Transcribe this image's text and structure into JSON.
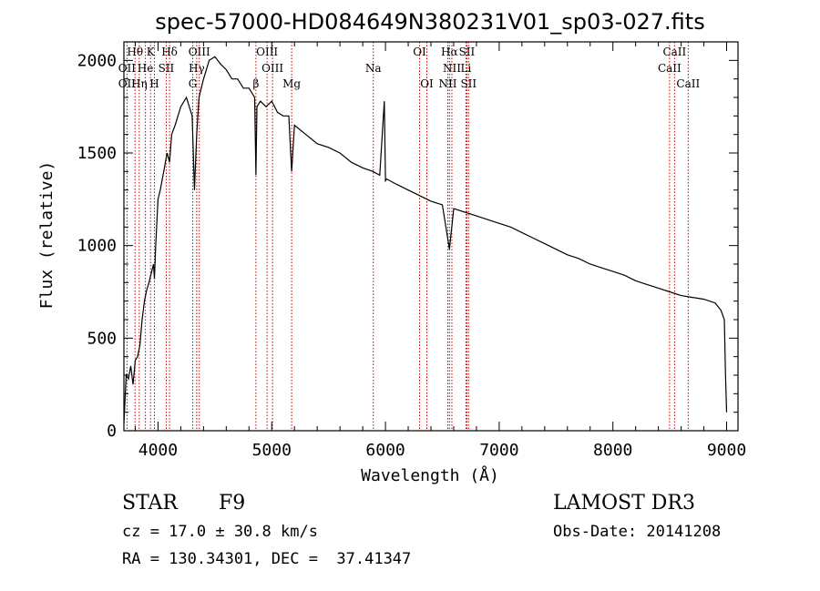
{
  "chart_data": {
    "type": "line",
    "title": "spec-57000-HD084649N380231V01_sp03-027.fits",
    "xlabel": "Wavelength (Å)",
    "ylabel": "Flux (relative)",
    "xlim": [
      3700,
      9100
    ],
    "ylim": [
      0,
      2100
    ],
    "xticks": [
      4000,
      5000,
      6000,
      7000,
      8000,
      9000
    ],
    "yticks": [
      0,
      500,
      1000,
      1500,
      2000
    ],
    "grid": false,
    "series": [
      {
        "name": "flux",
        "x": [
          3700,
          3720,
          3740,
          3760,
          3780,
          3800,
          3820,
          3840,
          3860,
          3880,
          3900,
          3920,
          3940,
          3960,
          3968,
          3980,
          4000,
          4020,
          4050,
          4080,
          4101,
          4120,
          4150,
          4200,
          4250,
          4300,
          4320,
          4340,
          4360,
          4380,
          4400,
          4450,
          4500,
          4550,
          4600,
          4650,
          4700,
          4750,
          4800,
          4850,
          4861,
          4870,
          4900,
          4950,
          5000,
          5050,
          5100,
          5150,
          5175,
          5200,
          5300,
          5400,
          5500,
          5600,
          5700,
          5800,
          5890,
          5950,
          5990,
          6000,
          6010,
          6100,
          6200,
          6300,
          6400,
          6500,
          6563,
          6600,
          6700,
          6800,
          6900,
          7000,
          7100,
          7200,
          7300,
          7400,
          7500,
          7600,
          7700,
          7800,
          7900,
          8000,
          8100,
          8200,
          8300,
          8400,
          8500,
          8600,
          8700,
          8800,
          8900,
          8950,
          8980,
          8990,
          9000
        ],
        "values": [
          40,
          300,
          280,
          350,
          250,
          380,
          400,
          460,
          600,
          700,
          760,
          800,
          850,
          900,
          820,
          1000,
          1250,
          1300,
          1400,
          1500,
          1450,
          1600,
          1650,
          1750,
          1800,
          1700,
          1300,
          1600,
          1800,
          1850,
          1900,
          2000,
          2020,
          1980,
          1950,
          1900,
          1900,
          1850,
          1850,
          1800,
          1380,
          1750,
          1780,
          1750,
          1780,
          1720,
          1700,
          1700,
          1400,
          1650,
          1600,
          1550,
          1530,
          1500,
          1450,
          1420,
          1400,
          1380,
          1780,
          1350,
          1360,
          1330,
          1300,
          1270,
          1240,
          1220,
          980,
          1200,
          1180,
          1160,
          1140,
          1120,
          1100,
          1070,
          1040,
          1010,
          980,
          950,
          930,
          900,
          880,
          860,
          840,
          810,
          790,
          770,
          750,
          730,
          720,
          710,
          690,
          650,
          600,
          300,
          100
        ]
      }
    ],
    "annotations": [
      {
        "label": "Hδ",
        "x": 4101,
        "row": 0
      },
      {
        "label": "Hθ",
        "x": 3798,
        "row": 0
      },
      {
        "label": "K",
        "x": 3934,
        "row": 0
      },
      {
        "label": "OIII",
        "x": 4363,
        "row": 0
      },
      {
        "label": "OIII",
        "x": 4959,
        "row": 0
      },
      {
        "label": "OI",
        "x": 6300,
        "row": 0
      },
      {
        "label": "Hα",
        "x": 6563,
        "row": 0
      },
      {
        "label": "SII",
        "x": 6716,
        "row": 0
      },
      {
        "label": "CaII",
        "x": 8542,
        "row": 0
      },
      {
        "label": "OII",
        "x": 3727,
        "row": 1
      },
      {
        "label": "He",
        "x": 3889,
        "row": 1
      },
      {
        "label": "SII",
        "x": 4072,
        "row": 1
      },
      {
        "label": "Hγ",
        "x": 4340,
        "row": 1
      },
      {
        "label": "OIII",
        "x": 5007,
        "row": 1
      },
      {
        "label": "Na",
        "x": 5893,
        "row": 1
      },
      {
        "label": "NII",
        "x": 6584,
        "row": 1
      },
      {
        "label": "Li",
        "x": 6708,
        "row": 1
      },
      {
        "label": "CaII",
        "x": 8498,
        "row": 1
      },
      {
        "label": "OII",
        "x": 3727,
        "row": 2
      },
      {
        "label": "Hη",
        "x": 3835,
        "row": 2
      },
      {
        "label": "H",
        "x": 3968,
        "row": 2
      },
      {
        "label": "G",
        "x": 4305,
        "row": 2
      },
      {
        "label": "β",
        "x": 4861,
        "row": 2
      },
      {
        "label": "Mg",
        "x": 5175,
        "row": 2
      },
      {
        "label": "OI",
        "x": 6364,
        "row": 2
      },
      {
        "label": "NII",
        "x": 6548,
        "row": 2
      },
      {
        "label": "SII",
        "x": 6731,
        "row": 2
      },
      {
        "label": "CaII",
        "x": 8662,
        "row": 2
      }
    ]
  },
  "info": {
    "object_type": "STAR",
    "subclass": "F9",
    "survey": "LAMOST DR3",
    "cz": "cz = 17.0 ± 30.8 km/s",
    "obs_date": "Obs-Date: 20141208",
    "coords": "RA = 130.34301, DEC =  37.41347"
  },
  "colors": {
    "line": "#000000",
    "marker_line": "#cc0000",
    "background": "#ffffff"
  }
}
